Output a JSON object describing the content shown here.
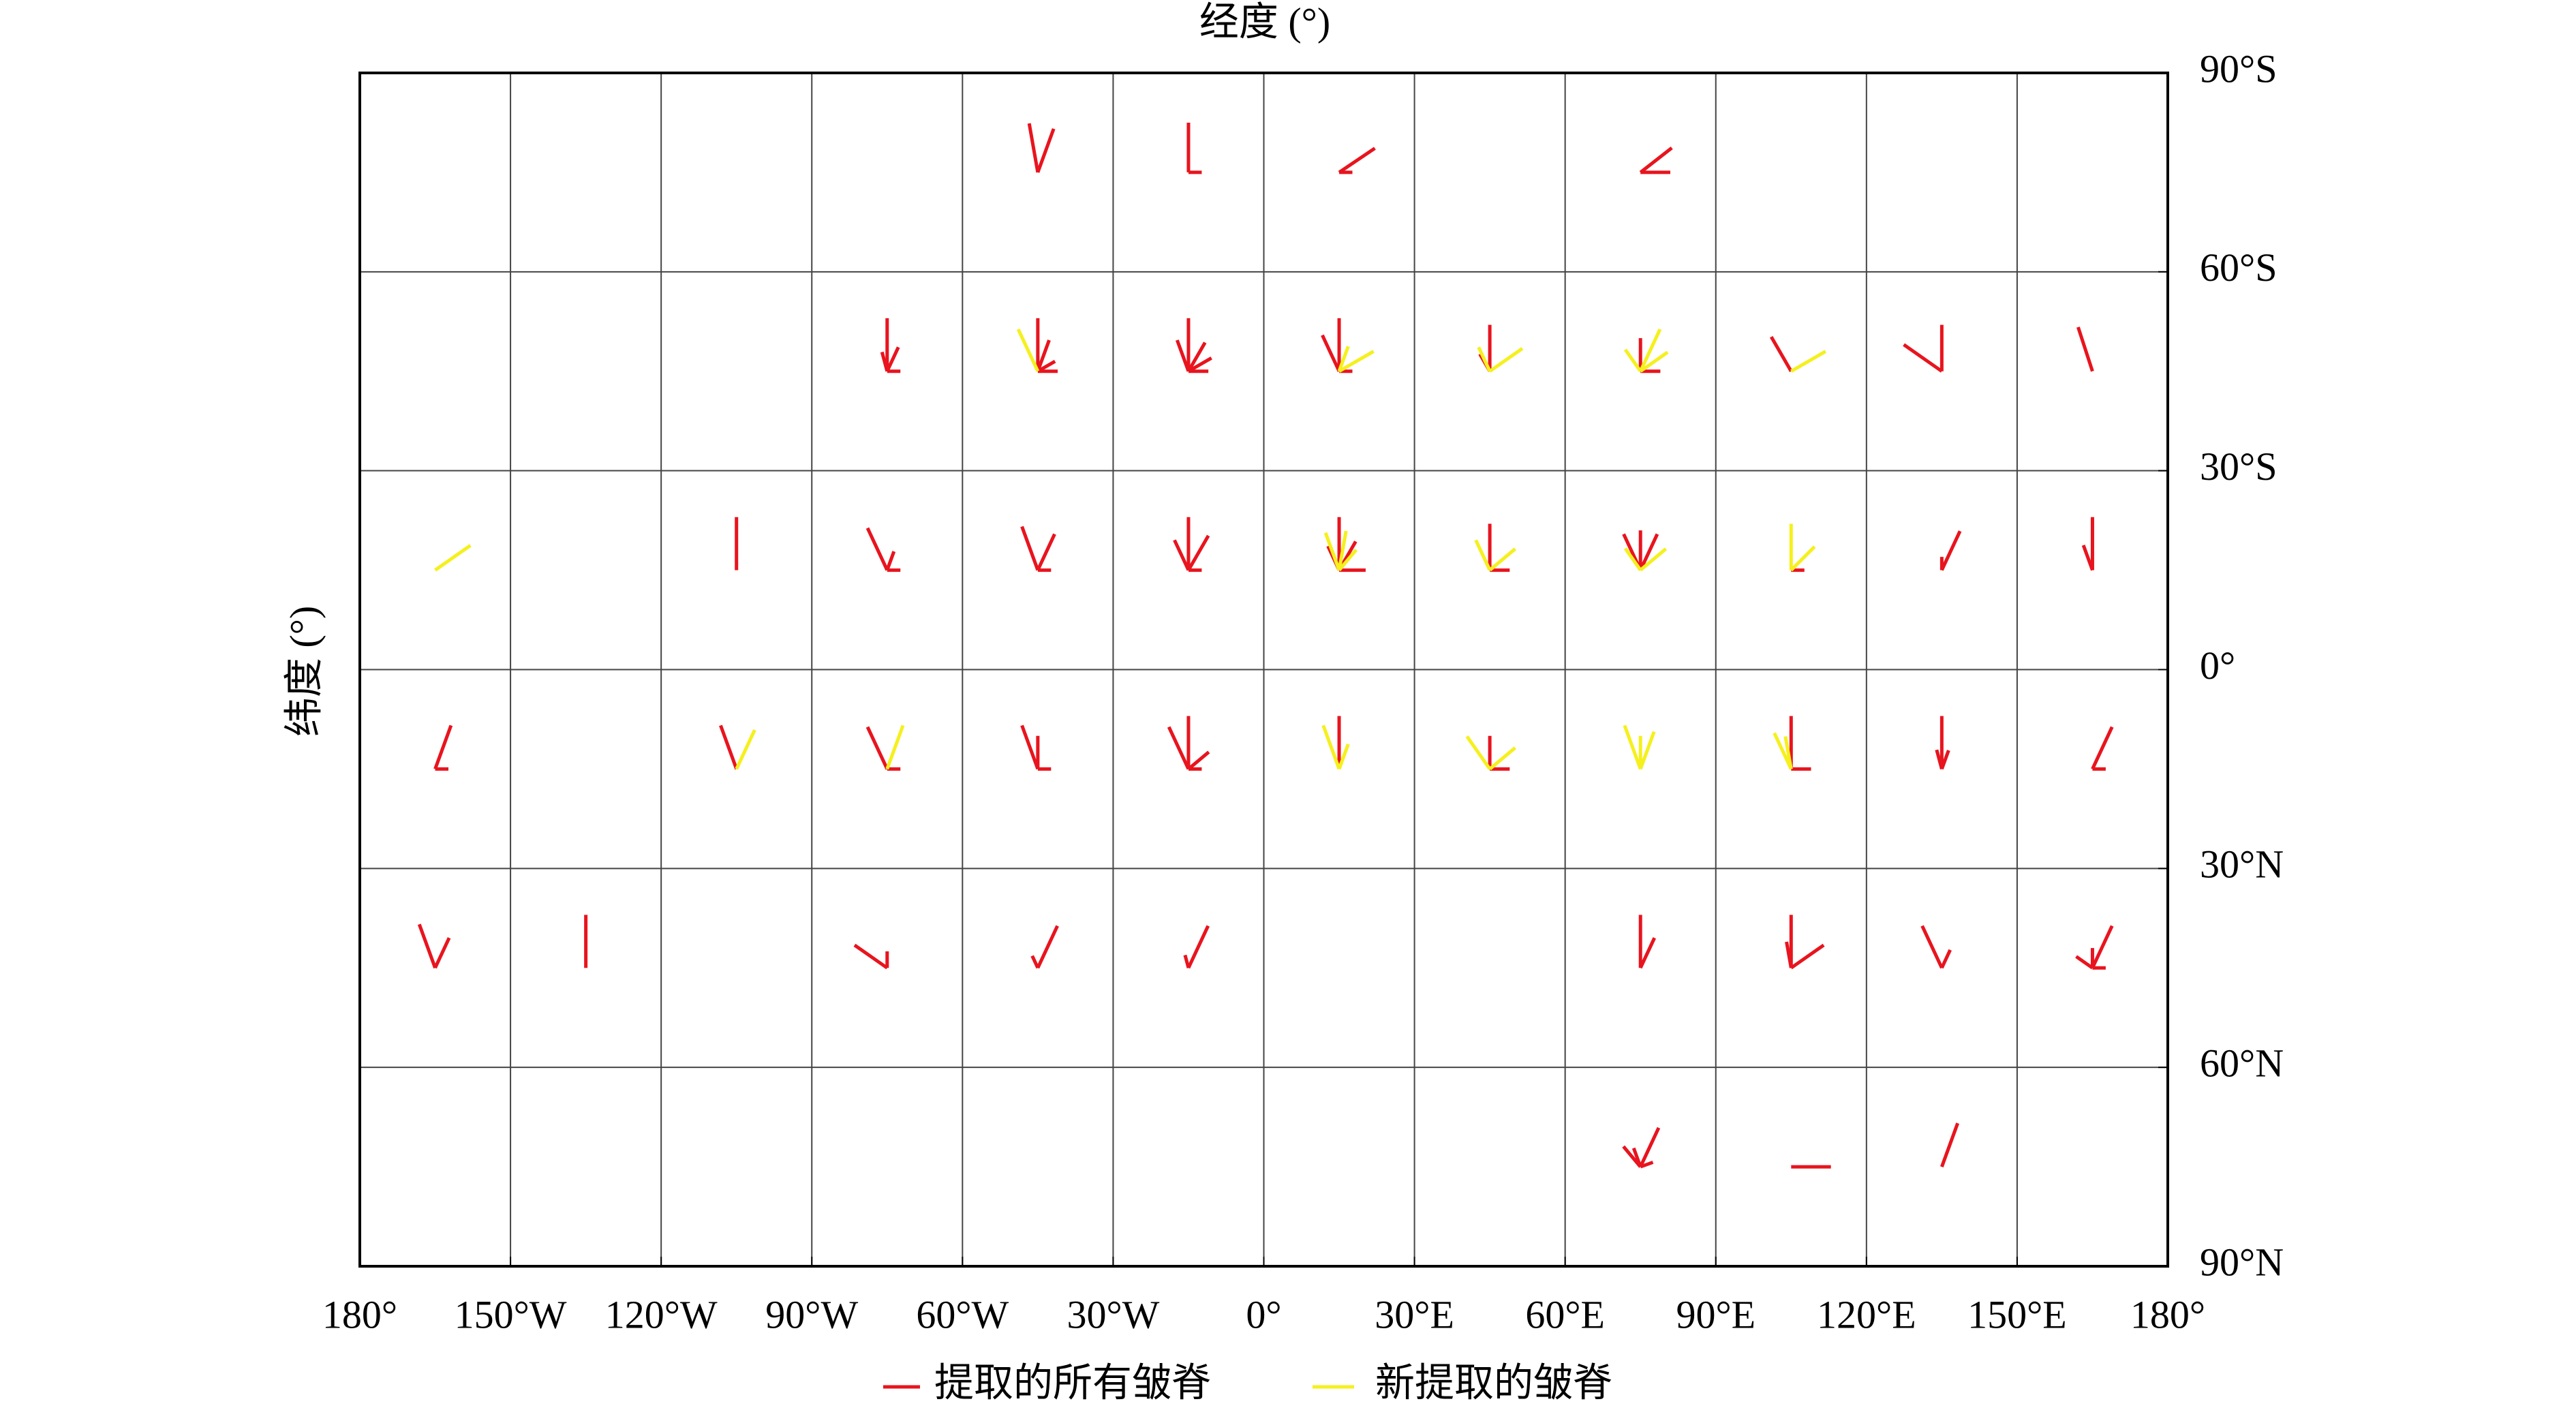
{
  "chart_data": {
    "type": "vector-rose",
    "x_label": "经度 (°)",
    "y_label": "纬度 (°)",
    "xlim": [
      -180,
      180
    ],
    "ylim": [
      -90,
      90
    ],
    "y_inverted": true,
    "grid": true,
    "legend": "bottom",
    "xticks": [
      {
        "value": -180,
        "label": "180°"
      },
      {
        "value": -150,
        "label": "150°W"
      },
      {
        "value": -120,
        "label": "120°W"
      },
      {
        "value": -90,
        "label": "90°W"
      },
      {
        "value": -60,
        "label": "60°W"
      },
      {
        "value": -30,
        "label": "30°W"
      },
      {
        "value": 0,
        "label": "0°"
      },
      {
        "value": 30,
        "label": "30°E"
      },
      {
        "value": 60,
        "label": "60°E"
      },
      {
        "value": 90,
        "label": "90°E"
      },
      {
        "value": 120,
        "label": "120°E"
      },
      {
        "value": 150,
        "label": "150°E"
      },
      {
        "value": 180,
        "label": "180°"
      }
    ],
    "yticks": [
      {
        "value": -90,
        "label": "90°S"
      },
      {
        "value": -60,
        "label": "60°S"
      },
      {
        "value": -30,
        "label": "30°S"
      },
      {
        "value": 0,
        "label": "0°"
      },
      {
        "value": 30,
        "label": "30°N"
      },
      {
        "value": 60,
        "label": "60°N"
      },
      {
        "value": 90,
        "label": "90°N"
      }
    ],
    "series": [
      {
        "name": "提取的所有皱脊",
        "color": "#e8141e",
        "x": [
          -45,
          -45,
          -15,
          -15,
          15,
          15,
          75,
          75,
          -75,
          -75,
          -75,
          -75,
          -45,
          -45,
          -45,
          -45,
          -15,
          -15,
          -15,
          -15,
          -15,
          15,
          15,
          15,
          45,
          45,
          75,
          75,
          105,
          135,
          135,
          165,
          -105,
          -75,
          -75,
          -75,
          -45,
          -45,
          -45,
          -15,
          -15,
          -15,
          -15,
          15,
          15,
          15,
          15,
          45,
          45,
          75,
          75,
          75,
          105,
          135,
          135,
          165,
          165,
          -165,
          -165,
          -105,
          -75,
          -75,
          -45,
          -45,
          -45,
          -15,
          -15,
          -15,
          -15,
          15,
          45,
          45,
          105,
          105,
          135,
          135,
          135,
          165,
          165,
          -165,
          -165,
          -135,
          -75,
          -75,
          -45,
          -45,
          -15,
          -15,
          75,
          75,
          105,
          105,
          105,
          135,
          135,
          165,
          165,
          165,
          165,
          75,
          75,
          75,
          75,
          105,
          135
        ],
        "y": [
          -75,
          -75,
          -75,
          -75,
          -75,
          -75,
          -75,
          -75,
          -45,
          -45,
          -45,
          -45,
          -45,
          -45,
          -45,
          -45,
          -45,
          -45,
          -45,
          -45,
          -45,
          -45,
          -45,
          -45,
          -45,
          -45,
          -45,
          -45,
          -45,
          -45,
          -45,
          -45,
          -15,
          -15,
          -15,
          -15,
          -15,
          -15,
          -15,
          -15,
          -15,
          -15,
          -15,
          -15,
          -15,
          -15,
          -15,
          -15,
          -15,
          -15,
          -15,
          -15,
          -15,
          -15,
          -15,
          -15,
          -15,
          15,
          15,
          15,
          15,
          15,
          15,
          15,
          15,
          15,
          15,
          15,
          15,
          15,
          15,
          15,
          15,
          15,
          15,
          15,
          15,
          15,
          15,
          45,
          45,
          45,
          45,
          45,
          45,
          45,
          45,
          45,
          45,
          45,
          45,
          45,
          45,
          45,
          45,
          45,
          45,
          45,
          45,
          75,
          75,
          75,
          75,
          75,
          75
        ],
        "angle": [
          -10,
          20,
          0,
          90,
          56,
          90,
          52,
          90,
          0,
          -15,
          25,
          90,
          0,
          20,
          60,
          90,
          0,
          -20,
          30,
          60,
          90,
          0,
          -25,
          90,
          0,
          -30,
          0,
          90,
          -30,
          0,
          -55,
          -18,
          0,
          -25,
          90,
          20,
          -20,
          25,
          90,
          0,
          -25,
          30,
          90,
          0,
          -25,
          30,
          90,
          0,
          90,
          0,
          -25,
          25,
          90,
          25,
          0,
          0,
          -20,
          20,
          90,
          -20,
          -25,
          90,
          -20,
          0,
          90,
          -25,
          0,
          50,
          90,
          0,
          0,
          90,
          0,
          90,
          0,
          -15,
          20,
          25,
          90,
          -20,
          25,
          0,
          -55,
          0,
          25,
          -25,
          25,
          -15,
          0,
          25,
          0,
          55,
          -10,
          -25,
          25,
          25,
          0,
          -55,
          90,
          25,
          -40,
          -20,
          70,
          90,
          20
        ],
        "length": [
          7.5,
          7,
          7.5,
          2,
          6.5,
          2,
          6,
          4.5,
          8,
          3,
          4,
          2,
          8,
          5,
          3,
          3,
          8,
          5,
          5,
          4,
          3,
          8,
          6,
          2,
          7,
          3,
          5,
          3,
          6,
          7,
          7,
          7,
          8,
          7,
          2,
          3,
          7,
          6,
          2,
          8,
          5,
          6,
          2,
          8,
          4,
          5,
          4,
          7,
          3,
          6,
          6,
          6,
          2,
          6.5,
          2,
          8,
          4,
          7,
          2,
          7,
          7,
          2,
          7,
          5,
          2,
          7,
          8,
          4,
          2,
          8,
          5,
          3,
          8,
          3,
          8,
          3,
          3,
          7,
          2,
          7,
          5,
          8,
          6,
          2.5,
          7,
          2,
          7,
          2,
          8,
          5,
          8,
          6,
          4,
          7,
          3,
          7,
          3,
          3,
          2,
          6.5,
          4,
          3,
          2,
          6,
          7
        ]
      },
      {
        "name": "新提取的皱脊",
        "color": "#f5f01e",
        "x": [
          -45,
          15,
          15,
          45,
          45,
          75,
          75,
          75,
          105,
          -165,
          15,
          15,
          15,
          45,
          45,
          75,
          75,
          105,
          105,
          -105,
          -75,
          15,
          15,
          45,
          45,
          75,
          75,
          75,
          105,
          105
        ],
        "y": [
          -45,
          -45,
          -45,
          -45,
          -45,
          -45,
          -45,
          -45,
          -45,
          -15,
          -15,
          -15,
          -15,
          -15,
          -15,
          -15,
          -15,
          -15,
          -15,
          15,
          15,
          15,
          15,
          15,
          15,
          15,
          15,
          15,
          15,
          15
        ],
        "angle": [
          -25,
          60,
          20,
          55,
          -25,
          25,
          55,
          -35,
          60,
          55,
          -20,
          10,
          40,
          -25,
          50,
          -35,
          50,
          0,
          45,
          25,
          20,
          -20,
          20,
          -35,
          50,
          -20,
          0,
          20,
          -25,
          -10
        ],
        "length": [
          7,
          6,
          4,
          6,
          4,
          7,
          5,
          4,
          6,
          6.5,
          6,
          6,
          4,
          5,
          5,
          4,
          5,
          7,
          5,
          6.5,
          7,
          7,
          4,
          6,
          5,
          7,
          5,
          6,
          6,
          5
        ]
      }
    ]
  }
}
